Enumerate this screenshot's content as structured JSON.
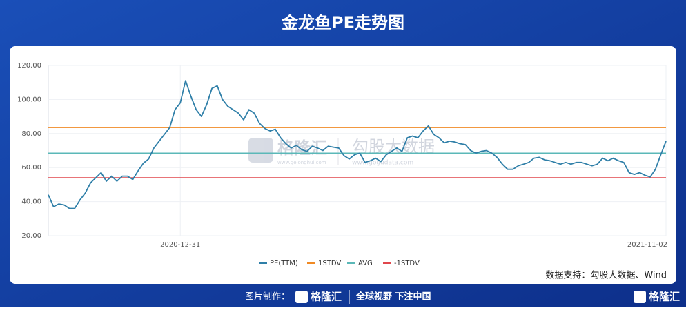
{
  "chart_data": {
    "type": "line",
    "title": "金龙鱼PE走势图",
    "categories": [
      null,
      null,
      null,
      null,
      null,
      null,
      null,
      null,
      null,
      null,
      null,
      null,
      null,
      null,
      null,
      null,
      null,
      null,
      null,
      null,
      null,
      null,
      null,
      null,
      null,
      "2020-12-31",
      null,
      null,
      null,
      null,
      null,
      null,
      null,
      null,
      null,
      null,
      null,
      null,
      null,
      null,
      null,
      null,
      null,
      null,
      null,
      null,
      null,
      null,
      null,
      null,
      null,
      null,
      null,
      null,
      null,
      null,
      null,
      null,
      null,
      null,
      null,
      null,
      null,
      null,
      null,
      null,
      null,
      null,
      null,
      null,
      null,
      null,
      null,
      null,
      null,
      null,
      null,
      null,
      null,
      null,
      null,
      null,
      null,
      null,
      null,
      null,
      null,
      null,
      null,
      null,
      null,
      null,
      null,
      null,
      null,
      null,
      null,
      null,
      null,
      null,
      null,
      null,
      null,
      null,
      null,
      null,
      null,
      null,
      null,
      null,
      null,
      null,
      null,
      null,
      null,
      null,
      null,
      "2021-11-02"
    ],
    "series": [
      {
        "name": "PE(TTM)",
        "color": "#2f7fa8",
        "values": [
          44,
          37,
          38.6,
          38,
          36,
          36,
          41,
          45,
          51,
          54,
          57,
          52,
          55,
          52,
          55,
          55,
          53,
          58,
          62.5,
          65,
          71.5,
          75.5,
          79.5,
          83.5,
          94,
          98,
          111,
          102,
          94,
          90,
          97,
          106.5,
          108,
          100,
          96,
          94,
          92,
          88,
          94,
          92,
          86,
          83,
          81.5,
          82.5,
          77.5,
          74,
          71.5,
          73,
          70.5,
          69.5,
          72.5,
          71.5,
          70,
          72.5,
          72,
          71.5,
          67,
          65,
          67.5,
          68.5,
          63,
          64,
          65.5,
          63.5,
          67.5,
          69.5,
          71.5,
          69.5,
          77.5,
          78.5,
          77.5,
          81.5,
          84.5,
          79.5,
          77.5,
          74.5,
          75.5,
          75,
          74,
          73.5,
          70,
          68.5,
          69.5,
          70,
          68.5,
          66,
          62,
          59,
          59,
          61,
          62,
          63,
          65.5,
          66,
          64.5,
          64,
          63,
          62,
          63,
          62,
          63,
          63,
          62,
          61,
          62,
          65.5,
          64,
          65.5,
          64,
          63,
          57,
          56,
          57,
          55.5,
          54.5,
          59,
          67.5,
          75.5
        ]
      }
    ],
    "reference_lines": [
      {
        "name": "1STDV",
        "color": "#f08a24",
        "value": 83.5
      },
      {
        "name": "AVG",
        "color": "#5bb8b8",
        "value": 68.5
      },
      {
        "name": "-1STDV",
        "color": "#e0474c",
        "value": 54
      }
    ],
    "ylim": [
      20,
      120
    ],
    "yticks": [
      {
        "value": 20,
        "label": "20.00"
      },
      {
        "value": 40,
        "label": "40.00"
      },
      {
        "value": 60,
        "label": "60.00"
      },
      {
        "value": 80,
        "label": "80.00"
      },
      {
        "value": 100,
        "label": "100.00"
      },
      {
        "value": 120,
        "label": "120.00"
      }
    ],
    "grid": true,
    "legend": "bottom"
  },
  "watermark": {
    "brand1": "格隆汇",
    "url1": "www.gelonghui.com",
    "brand2": "勾股大数据",
    "url2": "www.gogudata.com"
  },
  "source": "数据支持：勾股大数据、Wind",
  "footer": {
    "made_by": "图片制作：",
    "logo": "格隆汇",
    "slogan": "全球视野 下注中国",
    "right_logo": "格隆汇"
  }
}
